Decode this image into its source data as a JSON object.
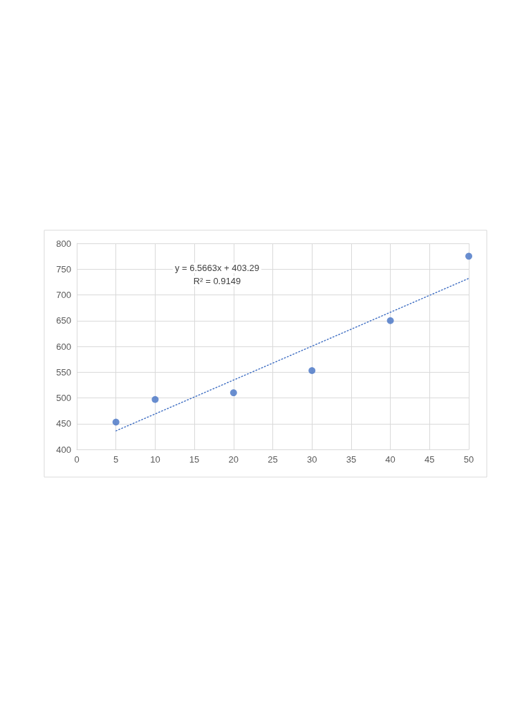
{
  "chart_data": {
    "type": "scatter",
    "annotations": [
      "y = 6.5663x + 403.29",
      "R² = 0.9149"
    ],
    "xlim": [
      0,
      50
    ],
    "xticks": [
      0,
      5,
      10,
      15,
      20,
      25,
      30,
      35,
      40,
      45,
      50
    ],
    "ylim": [
      400,
      800
    ],
    "yticks": [
      400,
      450,
      500,
      550,
      600,
      650,
      700,
      750,
      800
    ],
    "grid": true,
    "marker": "circle",
    "series": [
      {
        "color": "#4472c4",
        "x": [
          5,
          10,
          20,
          30,
          40,
          50
        ],
        "values": [
          453,
          497,
          510,
          553,
          650,
          775
        ]
      },
      {
        "type": "line",
        "color": "#4472c4",
        "line_style": "dotted",
        "marker": "none",
        "x": [
          5,
          50
        ],
        "values": [
          436,
          732
        ]
      }
    ]
  }
}
